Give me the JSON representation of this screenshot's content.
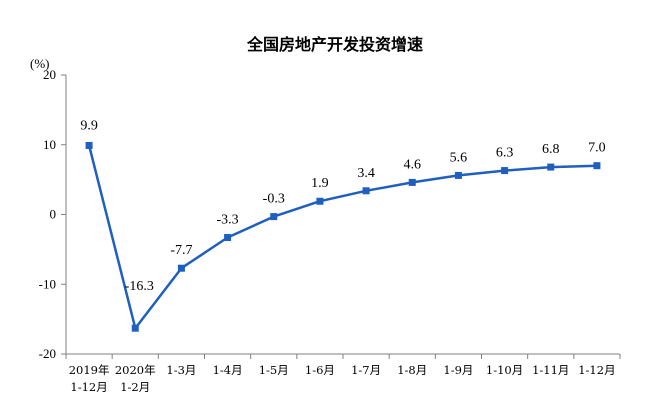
{
  "chart_data": {
    "type": "line",
    "title": "全国房地产开发投资增速",
    "unit_label": "(%)",
    "categories": [
      [
        "2019年",
        "1-12月"
      ],
      [
        "2020年",
        "1-2月"
      ],
      [
        "1-3月"
      ],
      [
        "1-4月"
      ],
      [
        "1-5月"
      ],
      [
        "1-6月"
      ],
      [
        "1-7月"
      ],
      [
        "1-8月"
      ],
      [
        "1-9月"
      ],
      [
        "1-10月"
      ],
      [
        "1-11月"
      ],
      [
        "1-12月"
      ]
    ],
    "values": [
      9.9,
      -16.3,
      -7.7,
      -3.3,
      -0.3,
      1.9,
      3.4,
      4.6,
      5.6,
      6.3,
      6.8,
      7.0
    ],
    "value_labels": [
      "9.9",
      "-16.3",
      "-7.7",
      "-3.3",
      "-0.3",
      "1.9",
      "3.4",
      "4.6",
      "5.6",
      "6.3",
      "6.8",
      "7.0"
    ],
    "ylim": [
      -20,
      20
    ],
    "yticks": [
      20,
      10,
      0,
      -10,
      -20
    ],
    "grid": false,
    "series_color": "#1f5fbf"
  }
}
